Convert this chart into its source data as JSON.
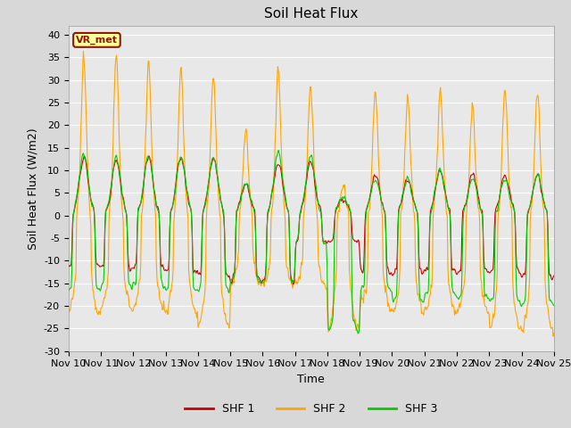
{
  "title": "Soil Heat Flux",
  "ylabel": "Soil Heat Flux (W/m2)",
  "xlabel": "Time",
  "ylim": [
    -30,
    42
  ],
  "yticks": [
    -30,
    -25,
    -20,
    -15,
    -10,
    -5,
    0,
    5,
    10,
    15,
    20,
    25,
    30,
    35,
    40
  ],
  "x_labels": [
    "Nov 10",
    "Nov 11",
    "Nov 12",
    "Nov 13",
    "Nov 14",
    "Nov 15",
    "Nov 16",
    "Nov 17",
    "Nov 18",
    "Nov 19",
    "Nov 20",
    "Nov 21",
    "Nov 22",
    "Nov 23",
    "Nov 24",
    "Nov 25"
  ],
  "site_label": "VR_met",
  "colors": {
    "SHF 1": "#cc0000",
    "SHF 2": "#ffa500",
    "SHF 3": "#00cc00"
  },
  "background_color": "#e8e8e8",
  "grid_color": "#ffffff",
  "title_fontsize": 11,
  "axis_label_fontsize": 9,
  "tick_fontsize": 8,
  "fig_width": 6.4,
  "fig_height": 4.8,
  "dpi": 100
}
